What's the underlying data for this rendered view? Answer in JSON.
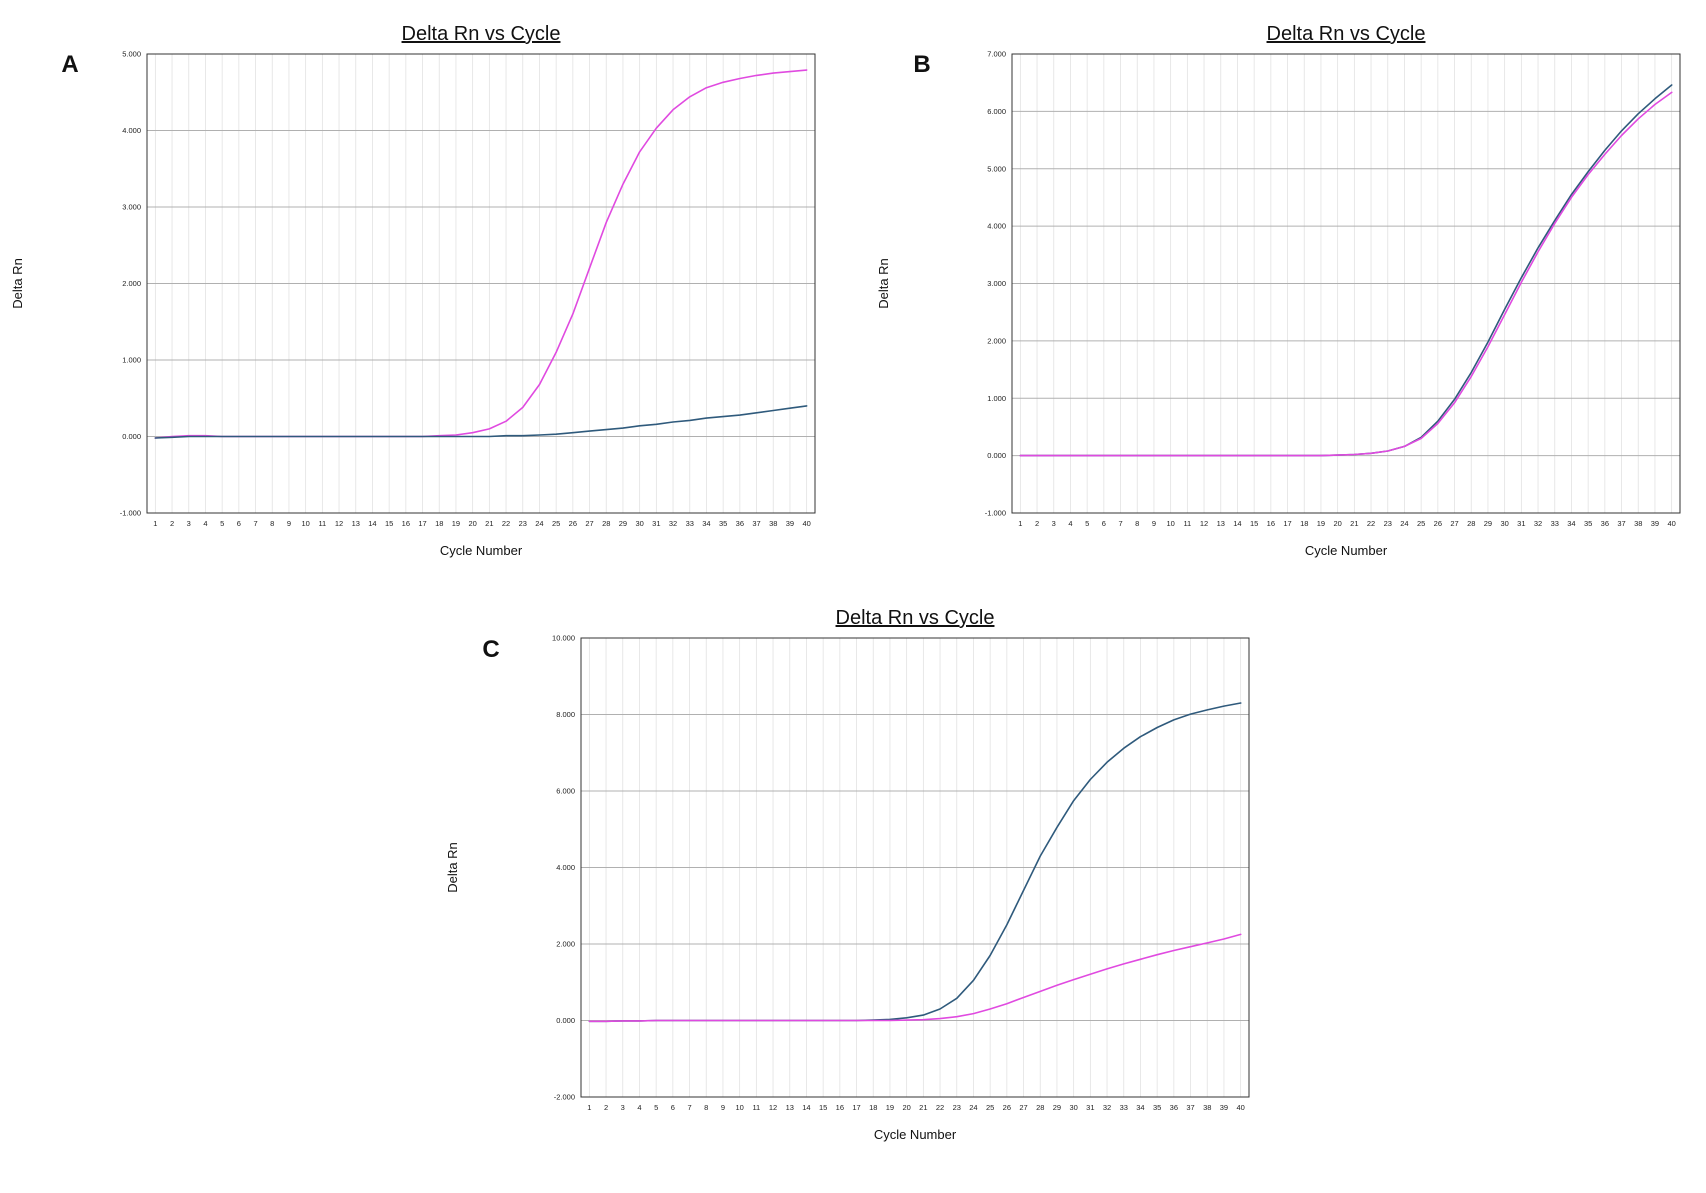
{
  "colors": {
    "blue": "#2f5a7c",
    "magenta": "#e04ae0"
  },
  "chart_data": [
    {
      "type": "line",
      "panel": "A",
      "title": "Delta Rn vs Cycle",
      "xlabel": "Cycle Number",
      "ylabel": "Delta Rn",
      "xlim": [
        1,
        40
      ],
      "ylim": [
        -1,
        5
      ],
      "yticks": [
        "-1.000",
        "0.000",
        "1.000",
        "2.000",
        "3.000",
        "4.000",
        "5.000"
      ],
      "x": [
        1,
        2,
        3,
        4,
        5,
        6,
        7,
        8,
        9,
        10,
        11,
        12,
        13,
        14,
        15,
        16,
        17,
        18,
        19,
        20,
        21,
        22,
        23,
        24,
        25,
        26,
        27,
        28,
        29,
        30,
        31,
        32,
        33,
        34,
        35,
        36,
        37,
        38,
        39,
        40
      ],
      "series": [
        {
          "name": "magenta",
          "color": "#e04ae0",
          "values": [
            -0.02,
            0.0,
            0.01,
            0.01,
            0.0,
            0.0,
            0.0,
            0.0,
            0.0,
            0.0,
            0.0,
            0.0,
            0.0,
            0.0,
            0.0,
            0.0,
            0.0,
            0.01,
            0.02,
            0.05,
            0.1,
            0.2,
            0.38,
            0.68,
            1.1,
            1.6,
            2.2,
            2.8,
            3.3,
            3.72,
            4.03,
            4.27,
            4.44,
            4.56,
            4.63,
            4.68,
            4.72,
            4.75,
            4.77,
            4.79
          ]
        },
        {
          "name": "blue",
          "color": "#2f5a7c",
          "values": [
            -0.02,
            -0.01,
            0.0,
            0.0,
            0.0,
            0.0,
            0.0,
            0.0,
            0.0,
            0.0,
            0.0,
            0.0,
            0.0,
            0.0,
            0.0,
            0.0,
            0.0,
            0.0,
            0.0,
            0.0,
            0.0,
            0.01,
            0.01,
            0.02,
            0.03,
            0.05,
            0.07,
            0.09,
            0.11,
            0.14,
            0.16,
            0.19,
            0.21,
            0.24,
            0.26,
            0.28,
            0.31,
            0.34,
            0.37,
            0.4
          ]
        }
      ]
    },
    {
      "type": "line",
      "panel": "B",
      "title": "Delta Rn vs Cycle",
      "xlabel": "Cycle Number",
      "ylabel": "Delta Rn",
      "xlim": [
        1,
        40
      ],
      "ylim": [
        -1,
        7
      ],
      "yticks": [
        "-1.000",
        "0.000",
        "1.000",
        "2.000",
        "3.000",
        "4.000",
        "5.000",
        "6.000",
        "7.000"
      ],
      "x": [
        1,
        2,
        3,
        4,
        5,
        6,
        7,
        8,
        9,
        10,
        11,
        12,
        13,
        14,
        15,
        16,
        17,
        18,
        19,
        20,
        21,
        22,
        23,
        24,
        25,
        26,
        27,
        28,
        29,
        30,
        31,
        32,
        33,
        34,
        35,
        36,
        37,
        38,
        39,
        40
      ],
      "series": [
        {
          "name": "blue",
          "color": "#2f5a7c",
          "values": [
            0.0,
            0.0,
            0.0,
            0.0,
            0.0,
            0.0,
            0.0,
            0.0,
            0.0,
            0.0,
            0.0,
            0.0,
            0.0,
            0.0,
            0.0,
            0.0,
            0.0,
            0.0,
            0.0,
            0.01,
            0.02,
            0.04,
            0.08,
            0.16,
            0.32,
            0.6,
            0.98,
            1.45,
            1.98,
            2.55,
            3.1,
            3.62,
            4.1,
            4.55,
            4.95,
            5.32,
            5.66,
            5.96,
            6.22,
            6.46
          ]
        },
        {
          "name": "magenta",
          "color": "#e04ae0",
          "values": [
            0.0,
            0.0,
            0.0,
            0.0,
            0.0,
            0.0,
            0.0,
            0.0,
            0.0,
            0.0,
            0.0,
            0.0,
            0.0,
            0.0,
            0.0,
            0.0,
            0.0,
            0.0,
            0.0,
            0.01,
            0.02,
            0.04,
            0.08,
            0.16,
            0.3,
            0.56,
            0.92,
            1.38,
            1.9,
            2.46,
            3.02,
            3.55,
            4.05,
            4.5,
            4.9,
            5.25,
            5.58,
            5.87,
            6.12,
            6.33
          ]
        }
      ]
    },
    {
      "type": "line",
      "panel": "C",
      "title": "Delta Rn vs Cycle",
      "xlabel": "Cycle Number",
      "ylabel": "Delta Rn",
      "xlim": [
        1,
        40
      ],
      "ylim": [
        -2,
        10
      ],
      "yticks": [
        "-2.000",
        "0.000",
        "2.000",
        "4.000",
        "6.000",
        "8.000",
        "10.000"
      ],
      "x": [
        1,
        2,
        3,
        4,
        5,
        6,
        7,
        8,
        9,
        10,
        11,
        12,
        13,
        14,
        15,
        16,
        17,
        18,
        19,
        20,
        21,
        22,
        23,
        24,
        25,
        26,
        27,
        28,
        29,
        30,
        31,
        32,
        33,
        34,
        35,
        36,
        37,
        38,
        39,
        40
      ],
      "series": [
        {
          "name": "blue",
          "color": "#2f5a7c",
          "values": [
            -0.02,
            -0.02,
            -0.01,
            -0.01,
            0.0,
            0.0,
            0.0,
            0.0,
            0.0,
            0.0,
            0.0,
            0.0,
            0.0,
            0.0,
            0.0,
            0.0,
            0.0,
            0.01,
            0.03,
            0.07,
            0.14,
            0.3,
            0.58,
            1.05,
            1.7,
            2.5,
            3.4,
            4.3,
            5.05,
            5.75,
            6.3,
            6.75,
            7.12,
            7.42,
            7.66,
            7.86,
            8.01,
            8.12,
            8.22,
            8.3
          ]
        },
        {
          "name": "magenta",
          "color": "#e04ae0",
          "values": [
            -0.02,
            -0.02,
            -0.01,
            -0.01,
            0.0,
            0.0,
            0.0,
            0.0,
            0.0,
            0.0,
            0.0,
            0.0,
            0.0,
            0.0,
            0.0,
            0.0,
            0.0,
            0.0,
            0.0,
            0.01,
            0.02,
            0.05,
            0.1,
            0.18,
            0.3,
            0.44,
            0.6,
            0.76,
            0.92,
            1.07,
            1.21,
            1.35,
            1.48,
            1.6,
            1.72,
            1.83,
            1.93,
            2.03,
            2.13,
            2.25
          ]
        }
      ]
    }
  ]
}
